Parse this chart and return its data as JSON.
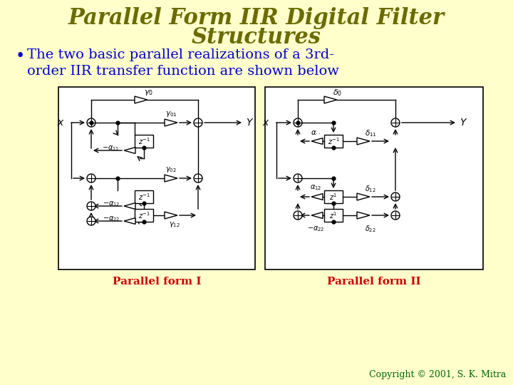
{
  "bg_color": "#FFFFCC",
  "title_line1": "Parallel Form IIR Digital Filter",
  "title_line2": "Structures",
  "title_color": "#6B6B00",
  "bullet_text": "The two basic parallel realizations of a 3rd-\norder IIR transfer function are shown below",
  "bullet_color": "#0000CC",
  "label1": "Parallel form I",
  "label2": "Parallel form II",
  "label_color": "#CC0000",
  "copyright_text": "Copyright © 2001, S. K. Mitra",
  "copyright_color": "#006600",
  "diagram_bg": "#FFFFFF",
  "line_color": "#000000",
  "title_fontsize": 22,
  "bullet_fontsize": 14,
  "label_fontsize": 11,
  "copyright_fontsize": 9
}
